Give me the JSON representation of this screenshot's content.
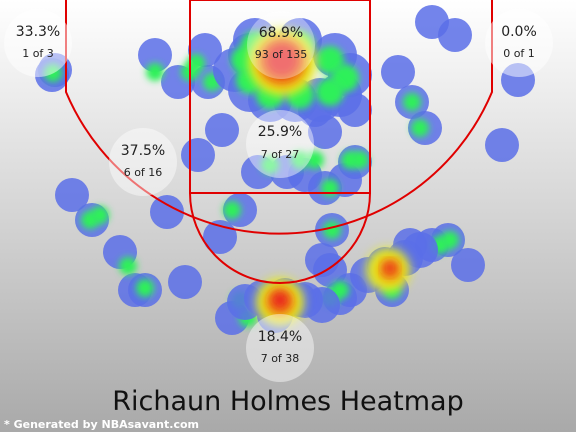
{
  "chart_data": {
    "type": "heatmap",
    "title": "Richaun Holmes Heatmap",
    "footer": "* Generated by NBAsavant.com",
    "zones": [
      {
        "id": "restricted-area",
        "pct": "68.9%",
        "made_attempts": "93 of 135",
        "made": 93,
        "attempts": 135
      },
      {
        "id": "paint",
        "pct": "25.9%",
        "made_attempts": "7 of 27",
        "made": 7,
        "attempts": 27
      },
      {
        "id": "left-corner-three",
        "pct": "33.3%",
        "made_attempts": "1 of 3",
        "made": 1,
        "attempts": 3
      },
      {
        "id": "right-corner-three",
        "pct": "0.0%",
        "made_attempts": "0 of 1",
        "made": 0,
        "attempts": 1
      },
      {
        "id": "left-midrange",
        "pct": "37.5%",
        "made_attempts": "6 of 16",
        "made": 6,
        "attempts": 16
      },
      {
        "id": "top-midrange",
        "pct": "18.4%",
        "made_attempts": "7 of 38",
        "made": 7,
        "attempts": 38
      }
    ],
    "colors": {
      "background_top": "#ffffff",
      "background_bottom": "#a9a9a9",
      "court_lines": "#e00000",
      "low": "#5a6ee8",
      "mid": "#2ef05a",
      "high_mid": "#e6f020",
      "hot": "#f08a10",
      "hottest": "#e82020",
      "zone_label_fill": "#ffffff"
    }
  }
}
